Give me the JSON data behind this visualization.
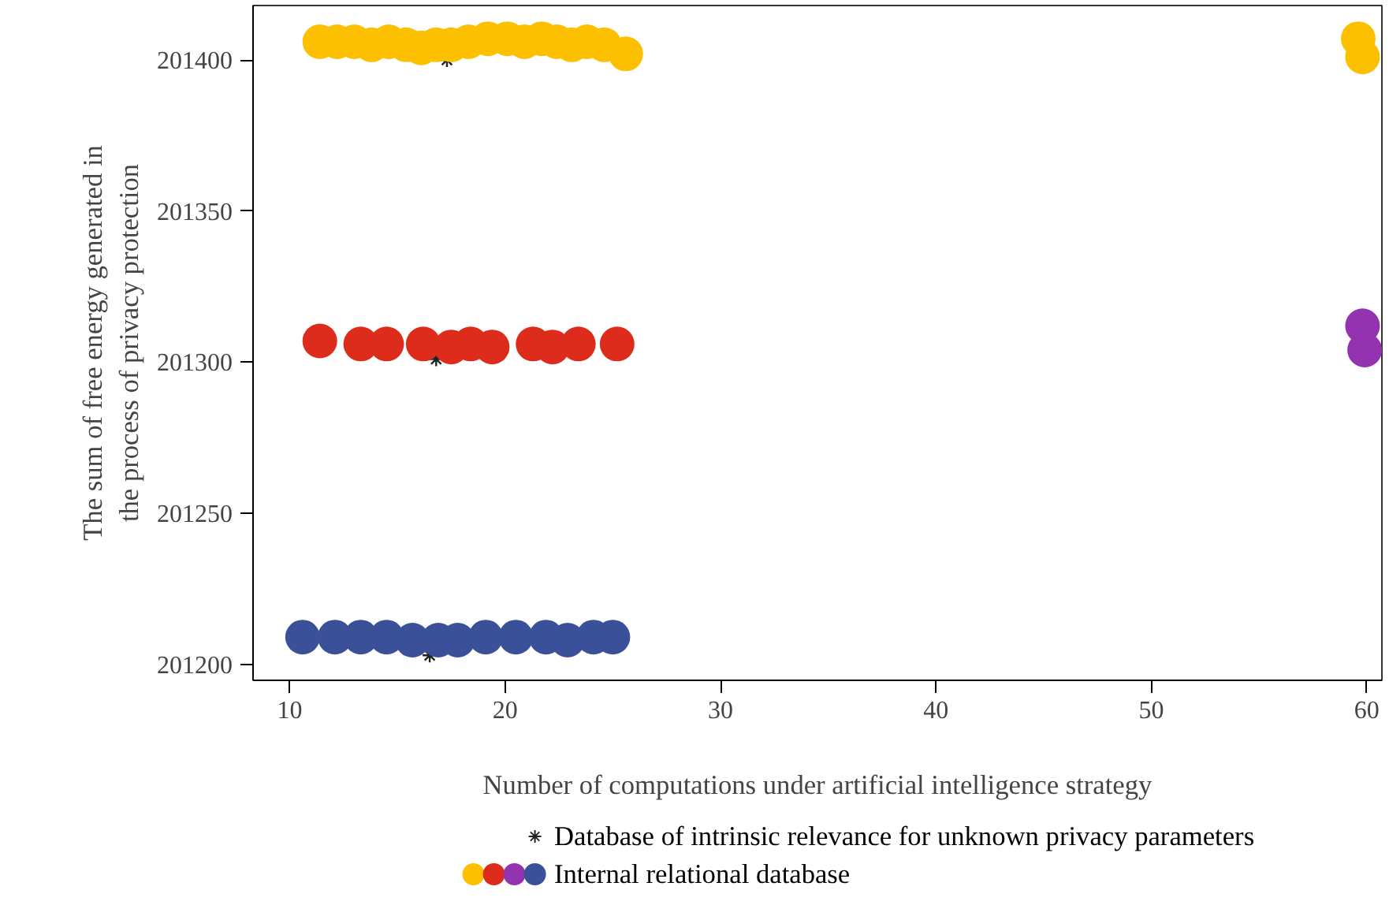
{
  "chart_data": {
    "type": "scatter",
    "xlabel": "Number of computations under artificial intelligence strategy",
    "ylabel": "The sum of free energy generated in the process of privacy protection",
    "xlim": [
      8.3,
      60.7
    ],
    "xticks": [
      10,
      20,
      30,
      40,
      50,
      60
    ],
    "ylim": [
      201194.7,
      201418
    ],
    "yticks": [
      201200,
      201250,
      201300,
      201350,
      201400
    ],
    "grid": false,
    "legend": "bottom",
    "series": [
      {
        "name": "Database of intrinsic relevance for unknown privacy parameters",
        "marker": "cross",
        "color": "#222222",
        "x": [
          17.3,
          16.8,
          16.5
        ],
        "values": [
          201400,
          201301,
          201203
        ]
      },
      {
        "name": "Internal relational database",
        "marker": "circle",
        "x": [
          11.4,
          12.2,
          13.0,
          13.8,
          14.6,
          15.4,
          16.1,
          16.8,
          17.5,
          18.3,
          19.2,
          20.1,
          20.9,
          21.7,
          22.4,
          23.1,
          23.8,
          24.6,
          25.6,
          59.6,
          59.8,
          11.4,
          13.3,
          14.5,
          16.2,
          17.5,
          18.4,
          19.4,
          21.3,
          22.2,
          23.4,
          25.2,
          59.8,
          59.9,
          10.6,
          12.1,
          13.3,
          14.5,
          15.7,
          16.9,
          17.8,
          19.1,
          20.5,
          21.9,
          22.9,
          24.1,
          25.0
        ],
        "values": [
          201406,
          201406,
          201406,
          201405,
          201406,
          201405,
          201404,
          201405,
          201405,
          201406,
          201407,
          201407,
          201406,
          201407,
          201406,
          201405,
          201406,
          201405,
          201402,
          201407,
          201401,
          201307,
          201306,
          201306,
          201306,
          201305,
          201306,
          201305,
          201306,
          201305,
          201306,
          201306,
          201312,
          201304,
          201209,
          201209,
          201209,
          201209,
          201208,
          201208,
          201208,
          201209,
          201209,
          201209,
          201208,
          201209,
          201209
        ],
        "colors": [
          "#fcc000",
          "#fcc000",
          "#fcc000",
          "#fcc000",
          "#fcc000",
          "#fcc000",
          "#fcc000",
          "#fcc000",
          "#fcc000",
          "#fcc000",
          "#fcc000",
          "#fcc000",
          "#fcc000",
          "#fcc000",
          "#fcc000",
          "#fcc000",
          "#fcc000",
          "#fcc000",
          "#fcc000",
          "#fcc000",
          "#fcc000",
          "#dd2c1c",
          "#dd2c1c",
          "#dd2c1c",
          "#dd2c1c",
          "#dd2c1c",
          "#dd2c1c",
          "#dd2c1c",
          "#dd2c1c",
          "#dd2c1c",
          "#dd2c1c",
          "#dd2c1c",
          "#9333b0",
          "#9333b0",
          "#3a5199",
          "#3a5199",
          "#3a5199",
          "#3a5199",
          "#3a5199",
          "#3a5199",
          "#3a5199",
          "#3a5199",
          "#3a5199",
          "#3a5199",
          "#3a5199",
          "#3a5199",
          "#3a5199"
        ]
      }
    ]
  }
}
